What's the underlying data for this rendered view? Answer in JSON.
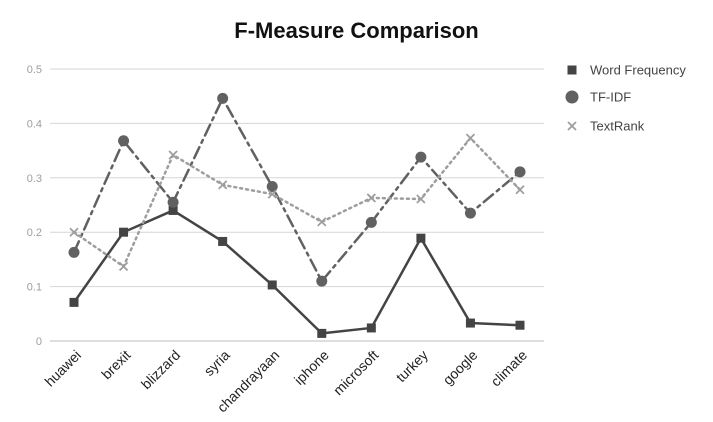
{
  "chart_data": {
    "type": "line",
    "title": "F-Measure Comparison",
    "xlabel": "",
    "ylabel": "",
    "ylim": [
      0,
      0.5
    ],
    "yticks": [
      "0",
      "0.1",
      "0.2",
      "0.3",
      "0.4",
      "0.5"
    ],
    "grid": true,
    "legend": "right",
    "categories": [
      "huawei",
      "brexit",
      "blizzard",
      "syria",
      "chandrayaan",
      "iphone",
      "microsoft",
      "turkey",
      "google",
      "climate"
    ],
    "series": [
      {
        "name": "Word Frequency",
        "marker": "square",
        "line": "solid",
        "color": "#444444",
        "values": [
          0.071,
          0.2,
          0.24,
          0.183,
          0.103,
          0.014,
          0.024,
          0.189,
          0.033,
          0.029
        ]
      },
      {
        "name": "TF-IDF",
        "marker": "circle",
        "line": "dashdot",
        "color": "#616161",
        "values": [
          0.163,
          0.368,
          0.255,
          0.446,
          0.284,
          0.11,
          0.218,
          0.338,
          0.235,
          0.311
        ]
      },
      {
        "name": "TextRank",
        "marker": "cross",
        "line": "dotted",
        "color": "#9e9e9e",
        "values": [
          0.2,
          0.137,
          0.342,
          0.287,
          0.27,
          0.219,
          0.263,
          0.261,
          0.373,
          0.278
        ]
      }
    ]
  }
}
